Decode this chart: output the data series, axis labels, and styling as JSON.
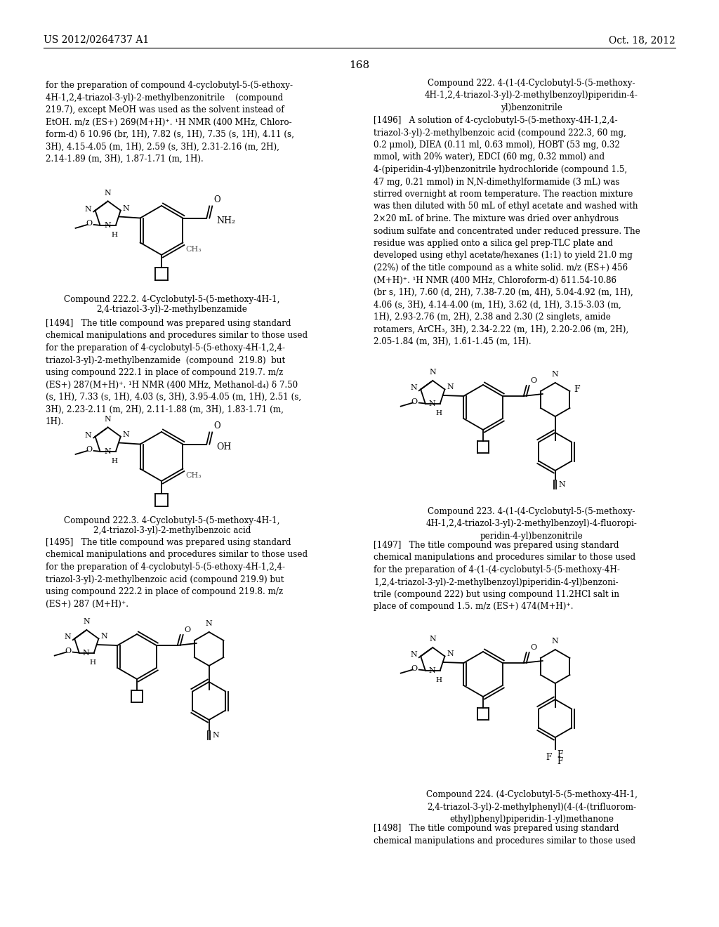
{
  "background_color": "#ffffff",
  "header_left": "US 2012/0264737 A1",
  "header_right": "Oct. 18, 2012",
  "page_number": "168",
  "font_color": "#000000"
}
